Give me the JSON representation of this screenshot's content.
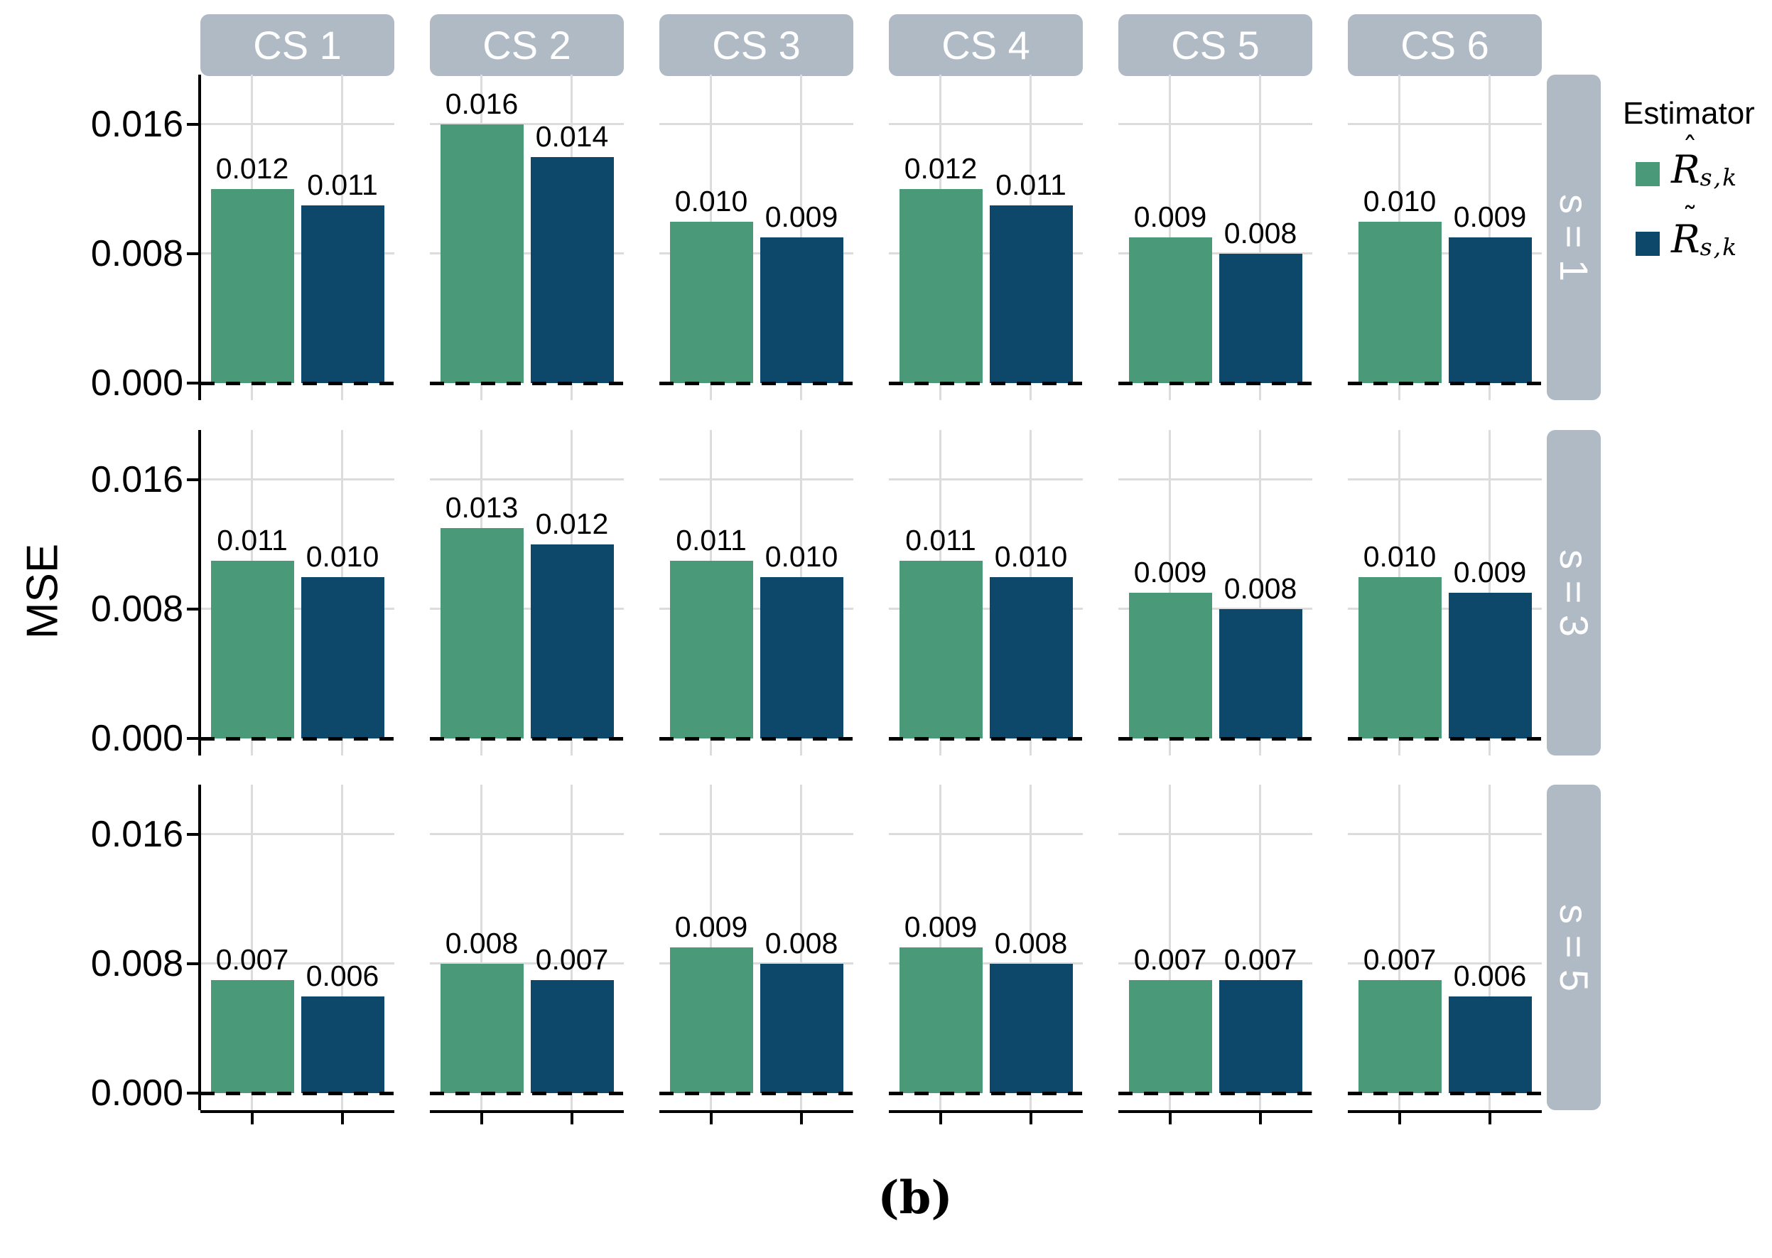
{
  "figure": {
    "y_axis_title": "MSE",
    "caption": "(b)",
    "column_labels": [
      "CS 1",
      "CS 2",
      "CS 3",
      "CS 4",
      "CS 5",
      "CS 6"
    ],
    "row_labels": [
      "s = 1",
      "s = 3",
      "s = 5"
    ],
    "y_tick_labels": [
      "0.016",
      "0.008",
      "0.000"
    ],
    "legend": {
      "title": "Estimator",
      "entries": [
        {
          "letter": "R",
          "accent": "ˆ",
          "subscript": "s,k",
          "color": "#4A9A79"
        },
        {
          "letter": "R",
          "accent": "˜",
          "subscript": "s,k",
          "color": "#0D486B"
        }
      ]
    },
    "colors": {
      "bar_green": "#4A9A79",
      "bar_blue": "#0D486B",
      "strip_background": "#AFBAC5",
      "gridline": "#DCDCDC",
      "axis": "#000000"
    }
  },
  "chart_data": {
    "type": "bar",
    "title": "",
    "ylabel": "MSE",
    "xlabel": "",
    "facet_columns": [
      "CS 1",
      "CS 2",
      "CS 3",
      "CS 4",
      "CS 5",
      "CS 6"
    ],
    "facet_rows": [
      "s = 1",
      "s = 3",
      "s = 5"
    ],
    "y_ticks": [
      0.016,
      0.008,
      0.0
    ],
    "ylim": [
      -0.0015,
      0.019
    ],
    "grid": true,
    "legend_position": "right",
    "zero_reference_line": "dashed-black",
    "bar_labels_shown": true,
    "series": [
      {
        "name": "R̂_s,k",
        "color": "#4A9A79",
        "values_by_row": [
          [
            0.012,
            0.016,
            0.01,
            0.012,
            0.009,
            0.01
          ],
          [
            0.011,
            0.013,
            0.011,
            0.011,
            0.009,
            0.01
          ],
          [
            0.007,
            0.008,
            0.009,
            0.009,
            0.007,
            0.007
          ]
        ]
      },
      {
        "name": "R̃_s,k",
        "color": "#0D486B",
        "values_by_row": [
          [
            0.011,
            0.014,
            0.009,
            0.011,
            0.008,
            0.009
          ],
          [
            0.01,
            0.012,
            0.01,
            0.01,
            0.008,
            0.009
          ],
          [
            0.006,
            0.007,
            0.008,
            0.008,
            0.007,
            0.006
          ]
        ]
      }
    ]
  }
}
